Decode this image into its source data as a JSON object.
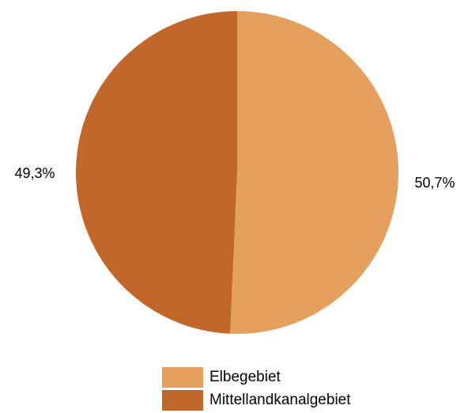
{
  "chart_data": {
    "type": "pie",
    "title": "",
    "slices": [
      {
        "name": "Elbegebiet",
        "value": 50.7,
        "label": "50,7%",
        "color": "#E6A05E"
      },
      {
        "name": "Mittellandkanalgebiet",
        "value": 49.3,
        "label": "49,3%",
        "color": "#C1672A"
      }
    ],
    "start_angle_deg": 0,
    "direction": "clockwise",
    "legend_position": "bottom"
  }
}
